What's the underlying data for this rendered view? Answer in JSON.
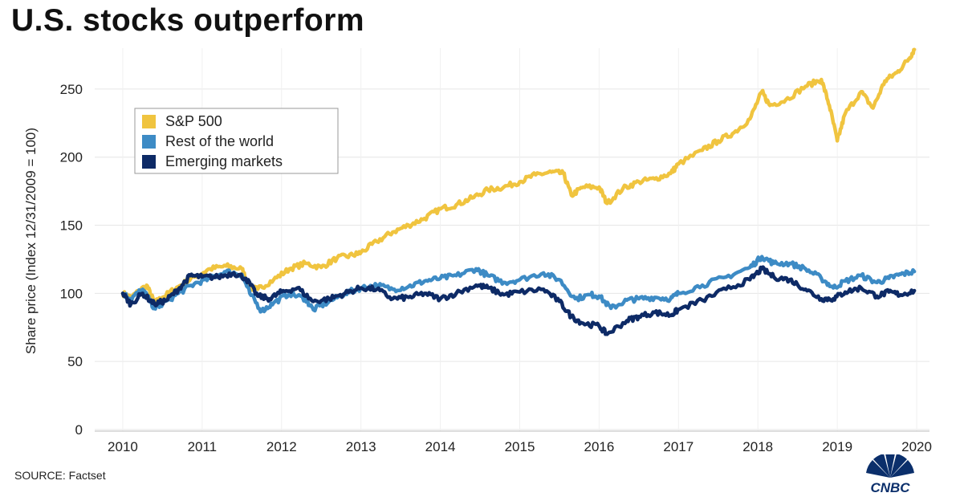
{
  "title": "U.S. stocks outperform",
  "source": "SOURCE: Factset",
  "logo_text": "CNBC",
  "chart_data": {
    "type": "line",
    "ylabel": "Share price (Index 12/31/2009 = 100)",
    "xlabel": "",
    "xlim": [
      2009.97,
      2020.03
    ],
    "ylim": [
      0,
      280
    ],
    "x_ticks": [
      "2010",
      "2011",
      "2012",
      "2013",
      "2014",
      "2015",
      "2016",
      "2017",
      "2018",
      "2019",
      "2020"
    ],
    "y_ticks": [
      "0",
      "50",
      "100",
      "150",
      "200",
      "250"
    ],
    "grid": true,
    "legend_position": "top-left",
    "series": [
      {
        "name": "S&P 500",
        "color": "#f0c43f",
        "points": [
          [
            2010.0,
            100
          ],
          [
            2010.1,
            97
          ],
          [
            2010.3,
            106
          ],
          [
            2010.4,
            93
          ],
          [
            2010.5,
            97
          ],
          [
            2010.7,
            105
          ],
          [
            2010.9,
            112
          ],
          [
            2011.1,
            118
          ],
          [
            2011.3,
            120
          ],
          [
            2011.5,
            118
          ],
          [
            2011.6,
            104
          ],
          [
            2011.7,
            103
          ],
          [
            2011.9,
            110
          ],
          [
            2012.1,
            118
          ],
          [
            2012.3,
            122
          ],
          [
            2012.5,
            119
          ],
          [
            2012.7,
            126
          ],
          [
            2012.9,
            128
          ],
          [
            2013.0,
            130
          ],
          [
            2013.2,
            138
          ],
          [
            2013.4,
            145
          ],
          [
            2013.6,
            150
          ],
          [
            2013.8,
            155
          ],
          [
            2014.0,
            162
          ],
          [
            2014.2,
            165
          ],
          [
            2014.4,
            170
          ],
          [
            2014.6,
            176
          ],
          [
            2014.8,
            178
          ],
          [
            2015.0,
            182
          ],
          [
            2015.2,
            187
          ],
          [
            2015.4,
            189
          ],
          [
            2015.55,
            188
          ],
          [
            2015.65,
            172
          ],
          [
            2015.8,
            178
          ],
          [
            2016.0,
            178
          ],
          [
            2016.1,
            166
          ],
          [
            2016.3,
            177
          ],
          [
            2016.5,
            182
          ],
          [
            2016.7,
            184
          ],
          [
            2016.9,
            188
          ],
          [
            2017.0,
            195
          ],
          [
            2017.3,
            205
          ],
          [
            2017.5,
            212
          ],
          [
            2017.7,
            218
          ],
          [
            2017.9,
            228
          ],
          [
            2018.05,
            248
          ],
          [
            2018.15,
            238
          ],
          [
            2018.35,
            242
          ],
          [
            2018.6,
            252
          ],
          [
            2018.8,
            257
          ],
          [
            2018.9,
            238
          ],
          [
            2019.0,
            212
          ],
          [
            2019.1,
            232
          ],
          [
            2019.3,
            248
          ],
          [
            2019.45,
            236
          ],
          [
            2019.6,
            256
          ],
          [
            2019.75,
            262
          ],
          [
            2019.9,
            272
          ],
          [
            2019.97,
            279
          ]
        ]
      },
      {
        "name": "Rest of the world",
        "color": "#3d8bc5",
        "points": [
          [
            2010.0,
            100
          ],
          [
            2010.1,
            96
          ],
          [
            2010.25,
            103
          ],
          [
            2010.4,
            89
          ],
          [
            2010.5,
            92
          ],
          [
            2010.7,
            100
          ],
          [
            2010.9,
            107
          ],
          [
            2011.1,
            111
          ],
          [
            2011.3,
            116
          ],
          [
            2011.5,
            114
          ],
          [
            2011.6,
            100
          ],
          [
            2011.75,
            87
          ],
          [
            2011.9,
            93
          ],
          [
            2012.1,
            100
          ],
          [
            2012.3,
            96
          ],
          [
            2012.4,
            88
          ],
          [
            2012.6,
            94
          ],
          [
            2012.8,
            100
          ],
          [
            2013.0,
            104
          ],
          [
            2013.2,
            106
          ],
          [
            2013.4,
            103
          ],
          [
            2013.6,
            105
          ],
          [
            2013.8,
            109
          ],
          [
            2014.0,
            111
          ],
          [
            2014.2,
            113
          ],
          [
            2014.45,
            118
          ],
          [
            2014.6,
            113
          ],
          [
            2014.8,
            108
          ],
          [
            2015.0,
            110
          ],
          [
            2015.3,
            115
          ],
          [
            2015.5,
            110
          ],
          [
            2015.7,
            96
          ],
          [
            2015.9,
            99
          ],
          [
            2016.0,
            98
          ],
          [
            2016.15,
            89
          ],
          [
            2016.35,
            95
          ],
          [
            2016.5,
            96
          ],
          [
            2016.7,
            97
          ],
          [
            2016.9,
            96
          ],
          [
            2017.0,
            100
          ],
          [
            2017.3,
            106
          ],
          [
            2017.6,
            112
          ],
          [
            2017.9,
            119
          ],
          [
            2018.05,
            127
          ],
          [
            2018.2,
            122
          ],
          [
            2018.4,
            122
          ],
          [
            2018.6,
            118
          ],
          [
            2018.8,
            111
          ],
          [
            2018.95,
            104
          ],
          [
            2019.1,
            109
          ],
          [
            2019.3,
            113
          ],
          [
            2019.5,
            108
          ],
          [
            2019.65,
            111
          ],
          [
            2019.8,
            114
          ],
          [
            2019.97,
            116
          ]
        ]
      },
      {
        "name": "Emerging markets",
        "color": "#0d2a66",
        "points": [
          [
            2010.0,
            100
          ],
          [
            2010.1,
            92
          ],
          [
            2010.25,
            100
          ],
          [
            2010.4,
            92
          ],
          [
            2010.55,
            95
          ],
          [
            2010.7,
            103
          ],
          [
            2010.85,
            113
          ],
          [
            2011.0,
            112
          ],
          [
            2011.2,
            112
          ],
          [
            2011.4,
            115
          ],
          [
            2011.55,
            111
          ],
          [
            2011.7,
            98
          ],
          [
            2011.85,
            96
          ],
          [
            2012.0,
            101
          ],
          [
            2012.2,
            104
          ],
          [
            2012.4,
            94
          ],
          [
            2012.6,
            96
          ],
          [
            2012.8,
            100
          ],
          [
            2013.0,
            104
          ],
          [
            2013.2,
            103
          ],
          [
            2013.4,
            96
          ],
          [
            2013.6,
            97
          ],
          [
            2013.8,
            100
          ],
          [
            2014.0,
            96
          ],
          [
            2014.2,
            100
          ],
          [
            2014.45,
            106
          ],
          [
            2014.6,
            104
          ],
          [
            2014.8,
            99
          ],
          [
            2015.0,
            101
          ],
          [
            2015.3,
            103
          ],
          [
            2015.5,
            94
          ],
          [
            2015.65,
            83
          ],
          [
            2015.8,
            78
          ],
          [
            2016.0,
            76
          ],
          [
            2016.1,
            70
          ],
          [
            2016.35,
            80
          ],
          [
            2016.5,
            83
          ],
          [
            2016.7,
            86
          ],
          [
            2016.9,
            84
          ],
          [
            2017.0,
            88
          ],
          [
            2017.3,
            95
          ],
          [
            2017.6,
            103
          ],
          [
            2017.9,
            110
          ],
          [
            2018.05,
            118
          ],
          [
            2018.2,
            112
          ],
          [
            2018.4,
            110
          ],
          [
            2018.6,
            103
          ],
          [
            2018.8,
            96
          ],
          [
            2018.95,
            96
          ],
          [
            2019.1,
            101
          ],
          [
            2019.3,
            104
          ],
          [
            2019.5,
            98
          ],
          [
            2019.65,
            101
          ],
          [
            2019.8,
            99
          ],
          [
            2019.97,
            102
          ]
        ]
      }
    ]
  }
}
